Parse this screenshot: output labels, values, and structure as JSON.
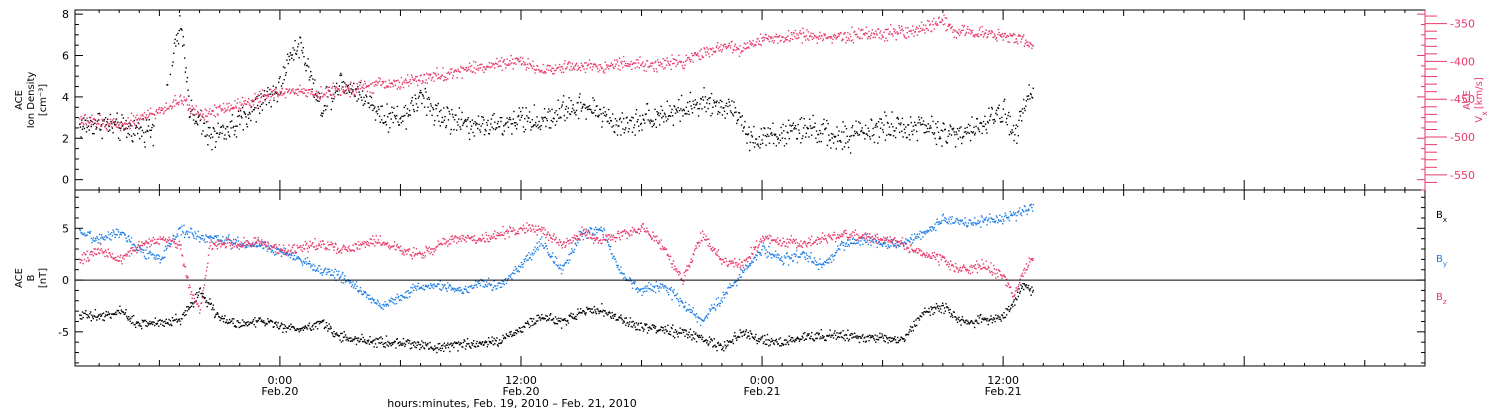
{
  "colors": {
    "black": "#000000",
    "pink": "#e8386a",
    "blue": "#1f7ee6"
  },
  "xaxis": {
    "tick_labels": [
      {
        "time": "0:00",
        "date": "Feb.20",
        "hours": 24
      },
      {
        "time": "12:00",
        "date": "Feb.20",
        "hours": 36
      },
      {
        "time": "0:00",
        "date": "Feb.21",
        "hours": 48
      },
      {
        "time": "12:00",
        "date": "Feb.21",
        "hours": 60
      }
    ],
    "label": "hours:minutes, Feb. 19, 2010 – Feb. 21, 2010",
    "range_hours": [
      13.8,
      81
    ]
  },
  "chart_data": [
    {
      "type": "scatter",
      "panel": "top",
      "ylabel": [
        "ACE",
        "Ion Density",
        "[cm⁻³]"
      ],
      "ylim": [
        -0.5,
        8.2
      ],
      "y_ticks": [
        "0",
        "2",
        "4",
        "6",
        "8"
      ],
      "y_tick_values": [
        0,
        2,
        4,
        6,
        8
      ],
      "right_axis": {
        "ylabel": [
          "ACE",
          "V",
          "x",
          "[km/s]"
        ],
        "ylim": [
          -570,
          -332
        ],
        "y_ticks": [
          "-350",
          "-400",
          "-450",
          "-500",
          "-550"
        ],
        "y_tick_values": [
          -350,
          -400,
          -450,
          -500,
          -550
        ],
        "color": "#e8386a"
      },
      "series": [
        {
          "color": "#000000",
          "axis": "left",
          "x": [
            14,
            15,
            16,
            17,
            18,
            19,
            19.5,
            20,
            20.5,
            21,
            22,
            23,
            24,
            24.5,
            25,
            25.5,
            26,
            27,
            28,
            29,
            30,
            31,
            32,
            33,
            34,
            35,
            36,
            37,
            38,
            39,
            40,
            41,
            42,
            43,
            44,
            45,
            46,
            46.5,
            47,
            47.5,
            48,
            49,
            50,
            51,
            52,
            53,
            54,
            55,
            56,
            57,
            58,
            59,
            59.5,
            60,
            60.5,
            61,
            61.5
          ],
          "y": [
            2.6,
            2.8,
            2.5,
            2.4,
            2.6,
            7.6,
            3.5,
            2.8,
            2.0,
            2.3,
            2.8,
            3.8,
            4.5,
            6.2,
            6.6,
            5.0,
            3.5,
            4.8,
            4.2,
            3.2,
            3.0,
            4.0,
            3.1,
            2.8,
            2.7,
            2.6,
            3.0,
            2.8,
            3.4,
            3.6,
            3.2,
            2.6,
            3.0,
            3.2,
            3.4,
            3.7,
            3.5,
            3.6,
            2.8,
            1.9,
            2.1,
            2.2,
            2.5,
            2.3,
            2.0,
            2.3,
            2.6,
            2.5,
            2.6,
            2.2,
            2.4,
            2.6,
            3.1,
            3.4,
            2.2,
            3.8,
            4.3
          ]
        },
        {
          "color": "#e8386a",
          "axis": "right",
          "x": [
            14,
            15,
            16,
            17,
            18,
            19,
            20,
            21,
            22,
            23,
            24,
            25,
            26,
            27,
            28,
            29,
            30,
            31,
            32,
            33,
            34,
            35,
            36,
            37,
            38,
            39,
            40,
            41,
            42,
            43,
            44,
            45,
            46,
            47,
            48,
            49,
            50,
            51,
            52,
            53,
            54,
            55,
            56,
            57,
            57.5,
            58,
            59,
            60,
            61,
            61.5
          ],
          "y": [
            -478,
            -480,
            -483,
            -474,
            -465,
            -450,
            -470,
            -462,
            -455,
            -447,
            -440,
            -438,
            -442,
            -436,
            -433,
            -430,
            -428,
            -422,
            -418,
            -411,
            -406,
            -403,
            -400,
            -410,
            -408,
            -404,
            -406,
            -402,
            -403,
            -402,
            -400,
            -388,
            -380,
            -382,
            -370,
            -368,
            -365,
            -368,
            -366,
            -362,
            -364,
            -360,
            -355,
            -345,
            -360,
            -358,
            -362,
            -365,
            -370,
            -377
          ]
        }
      ]
    },
    {
      "type": "scatter",
      "panel": "bottom",
      "ylabel": [
        "ACE",
        "B",
        "[nT]"
      ],
      "ylim": [
        -8.3,
        8.7
      ],
      "y_ticks": [
        "5",
        "0",
        "-5"
      ],
      "y_tick_values": [
        5,
        0,
        -5
      ],
      "zero_line": true,
      "series": [
        {
          "name": "B",
          "subscript": "x",
          "color": "#000000",
          "x": [
            14,
            15,
            16,
            17,
            18,
            19,
            20,
            21,
            22,
            23,
            24,
            25,
            26,
            27,
            28,
            29,
            30,
            31,
            32,
            33,
            34,
            35,
            36,
            37,
            38,
            39,
            40,
            41,
            42,
            43,
            44,
            45,
            46,
            47,
            48,
            49,
            50,
            51,
            52,
            53,
            54,
            55,
            56,
            57,
            58,
            59,
            60,
            61,
            61.5
          ],
          "y": [
            -3.2,
            -3.5,
            -3.0,
            -4.2,
            -4.0,
            -3.8,
            -1.0,
            -3.7,
            -4.2,
            -3.8,
            -4.5,
            -4.7,
            -4.0,
            -5.5,
            -5.7,
            -6.0,
            -6.0,
            -6.2,
            -6.4,
            -6.2,
            -6.0,
            -5.8,
            -4.5,
            -3.5,
            -4.0,
            -3.0,
            -2.8,
            -3.8,
            -4.5,
            -4.8,
            -5.0,
            -5.5,
            -6.5,
            -5.0,
            -5.8,
            -6.0,
            -5.5,
            -5.3,
            -5.2,
            -5.5,
            -5.5,
            -5.8,
            -3.0,
            -2.5,
            -4.0,
            -3.8,
            -3.5,
            -0.5,
            -1.0
          ]
        },
        {
          "name": "B",
          "subscript": "y",
          "color": "#1f7ee6",
          "x": [
            14,
            15,
            16,
            17,
            18,
            19,
            20,
            21,
            22,
            23,
            24,
            25,
            26,
            27,
            28,
            29,
            30,
            31,
            32,
            33,
            34,
            35,
            36,
            37,
            38,
            39,
            40,
            41,
            42,
            43,
            44,
            45,
            46,
            47,
            48,
            49,
            50,
            51,
            52,
            53,
            54,
            55,
            56,
            57,
            58,
            59,
            60,
            61,
            61.5
          ],
          "y": [
            4.5,
            4.0,
            4.8,
            3.0,
            2.0,
            5.0,
            4.2,
            4.0,
            3.5,
            3.5,
            2.8,
            2.0,
            1.0,
            0.5,
            -1.0,
            -2.5,
            -1.5,
            -0.5,
            -0.5,
            -1.0,
            -0.2,
            -0.5,
            1.5,
            3.8,
            1.0,
            4.5,
            5.0,
            0.5,
            -1.0,
            -0.5,
            -2.0,
            -4.0,
            -1.5,
            0.8,
            3.0,
            2.0,
            2.5,
            1.5,
            3.5,
            4.0,
            3.5,
            3.5,
            4.5,
            6.0,
            5.5,
            5.8,
            6.0,
            6.8,
            7.0
          ]
        },
        {
          "name": "B",
          "subscript": "z",
          "color": "#e8386a",
          "x": [
            14,
            15,
            16,
            17,
            18,
            19,
            19.5,
            20,
            20.5,
            21,
            22,
            23,
            24,
            25,
            26,
            27,
            28,
            29,
            30,
            31,
            32,
            33,
            34,
            35,
            36,
            37,
            38,
            39,
            40,
            41,
            42,
            43,
            44,
            45,
            46,
            47,
            48,
            49,
            50,
            51,
            52,
            53,
            54,
            55,
            56,
            57,
            58,
            59,
            60,
            60.5,
            61,
            61.5
          ],
          "y": [
            2.0,
            3.0,
            2.0,
            3.5,
            4.0,
            3.5,
            -1.0,
            -3.0,
            3.5,
            3.5,
            3.5,
            3.8,
            3.0,
            3.2,
            3.5,
            3.0,
            3.5,
            3.8,
            3.0,
            2.5,
            3.5,
            4.2,
            4.0,
            4.5,
            5.0,
            5.0,
            3.5,
            4.5,
            4.0,
            4.5,
            5.0,
            3.5,
            0.0,
            4.5,
            2.0,
            1.5,
            4.0,
            3.8,
            3.5,
            4.0,
            4.5,
            4.2,
            4.0,
            3.5,
            2.5,
            2.0,
            1.0,
            1.5,
            0.5,
            -1.5,
            1.0,
            2.5
          ]
        }
      ]
    }
  ]
}
